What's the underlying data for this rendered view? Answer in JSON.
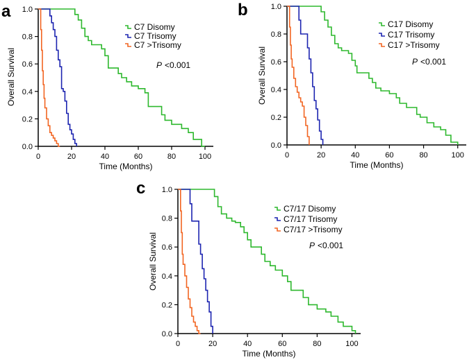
{
  "chart_data": [
    {
      "panel": "a",
      "type": "line",
      "xlabel": "Time (Months)",
      "ylabel": "Overall Survival",
      "xlim": [
        0,
        105
      ],
      "ylim": [
        0,
        1.0
      ],
      "xticks": [
        "0",
        "20",
        "40",
        "60",
        "80",
        "100"
      ],
      "yticks": [
        "0.0",
        "0.2",
        "0.4",
        "0.6",
        "0.8",
        "1.0"
      ],
      "pvalue": {
        "prefix": "P",
        "text": "<0.001"
      },
      "legend_position": "top-right",
      "series": [
        {
          "name": "C7 Disomy",
          "color": "#2db82d",
          "points": [
            [
              0,
              1.0
            ],
            [
              20,
              1.0
            ],
            [
              22,
              0.96
            ],
            [
              24,
              0.92
            ],
            [
              26,
              0.86
            ],
            [
              28,
              0.8
            ],
            [
              30,
              0.77
            ],
            [
              32,
              0.74
            ],
            [
              36,
              0.74
            ],
            [
              38,
              0.71
            ],
            [
              40,
              0.66
            ],
            [
              42,
              0.57
            ],
            [
              46,
              0.57
            ],
            [
              48,
              0.53
            ],
            [
              50,
              0.5
            ],
            [
              53,
              0.47
            ],
            [
              56,
              0.44
            ],
            [
              60,
              0.42
            ],
            [
              64,
              0.39
            ],
            [
              66,
              0.29
            ],
            [
              72,
              0.29
            ],
            [
              74,
              0.23
            ],
            [
              76,
              0.19
            ],
            [
              80,
              0.16
            ],
            [
              86,
              0.13
            ],
            [
              90,
              0.1
            ],
            [
              93,
              0.05
            ],
            [
              98,
              0.0
            ],
            [
              100,
              0.0
            ]
          ]
        },
        {
          "name": "C7 Trisomy",
          "color": "#1c24b0",
          "points": [
            [
              0,
              1.0
            ],
            [
              6,
              1.0
            ],
            [
              7,
              0.95
            ],
            [
              8,
              0.9
            ],
            [
              9,
              0.85
            ],
            [
              10,
              0.8
            ],
            [
              11,
              0.7
            ],
            [
              12,
              0.63
            ],
            [
              13,
              0.58
            ],
            [
              14,
              0.42
            ],
            [
              15,
              0.4
            ],
            [
              16,
              0.33
            ],
            [
              17,
              0.24
            ],
            [
              18,
              0.16
            ],
            [
              19,
              0.12
            ],
            [
              20,
              0.09
            ],
            [
              21,
              0.05
            ],
            [
              22,
              0.02
            ],
            [
              23,
              0.0
            ]
          ]
        },
        {
          "name": "C7 >Trisomy",
          "color": "#f26522",
          "points": [
            [
              0,
              1.0
            ],
            [
              1,
              1.0
            ],
            [
              1.5,
              0.85
            ],
            [
              2,
              0.7
            ],
            [
              2.5,
              0.55
            ],
            [
              3,
              0.45
            ],
            [
              3.5,
              0.35
            ],
            [
              4,
              0.28
            ],
            [
              5,
              0.2
            ],
            [
              6,
              0.15
            ],
            [
              7,
              0.1
            ],
            [
              8,
              0.08
            ],
            [
              9,
              0.06
            ],
            [
              10,
              0.04
            ],
            [
              11,
              0.02
            ],
            [
              12,
              0.0
            ],
            [
              13,
              0.0
            ]
          ]
        }
      ]
    },
    {
      "panel": "b",
      "type": "line",
      "xlabel": "Time (Months)",
      "ylabel": "Overall Survival",
      "xlim": [
        0,
        105
      ],
      "ylim": [
        0,
        1.0
      ],
      "xticks": [
        "0",
        "20",
        "40",
        "60",
        "80",
        "100"
      ],
      "yticks": [
        "0.0",
        "0.2",
        "0.4",
        "0.6",
        "0.8",
        "1.0"
      ],
      "pvalue": {
        "prefix": "P",
        "text": "<0.001"
      },
      "legend_position": "top-right",
      "series": [
        {
          "name": "C17 Disomy",
          "color": "#2db82d",
          "points": [
            [
              0,
              1.0
            ],
            [
              18,
              1.0
            ],
            [
              20,
              0.96
            ],
            [
              22,
              0.9
            ],
            [
              24,
              0.85
            ],
            [
              26,
              0.79
            ],
            [
              28,
              0.73
            ],
            [
              30,
              0.7
            ],
            [
              32,
              0.68
            ],
            [
              36,
              0.66
            ],
            [
              38,
              0.61
            ],
            [
              40,
              0.57
            ],
            [
              41,
              0.52
            ],
            [
              45,
              0.52
            ],
            [
              48,
              0.48
            ],
            [
              50,
              0.45
            ],
            [
              52,
              0.41
            ],
            [
              55,
              0.39
            ],
            [
              60,
              0.37
            ],
            [
              64,
              0.34
            ],
            [
              66,
              0.3
            ],
            [
              70,
              0.27
            ],
            [
              74,
              0.27
            ],
            [
              76,
              0.22
            ],
            [
              78,
              0.2
            ],
            [
              82,
              0.16
            ],
            [
              86,
              0.13
            ],
            [
              90,
              0.11
            ],
            [
              93,
              0.07
            ],
            [
              96,
              0.02
            ],
            [
              100,
              0.0
            ]
          ]
        },
        {
          "name": "C17 Trisomy",
          "color": "#1c24b0",
          "points": [
            [
              0,
              1.0
            ],
            [
              6,
              1.0
            ],
            [
              7,
              0.9
            ],
            [
              8,
              0.8
            ],
            [
              11,
              0.8
            ],
            [
              12,
              0.7
            ],
            [
              13,
              0.62
            ],
            [
              14,
              0.52
            ],
            [
              15,
              0.42
            ],
            [
              16,
              0.32
            ],
            [
              17,
              0.26
            ],
            [
              18,
              0.18
            ],
            [
              19,
              0.1
            ],
            [
              20,
              0.04
            ],
            [
              21,
              0.0
            ]
          ]
        },
        {
          "name": "C17 >Trisomy",
          "color": "#f26522",
          "points": [
            [
              0,
              1.0
            ],
            [
              1,
              1.0
            ],
            [
              1.5,
              0.85
            ],
            [
              2,
              0.72
            ],
            [
              2.5,
              0.62
            ],
            [
              3,
              0.56
            ],
            [
              4,
              0.48
            ],
            [
              5,
              0.42
            ],
            [
              6,
              0.38
            ],
            [
              7,
              0.34
            ],
            [
              8,
              0.31
            ],
            [
              9,
              0.28
            ],
            [
              10,
              0.2
            ],
            [
              11,
              0.14
            ],
            [
              12,
              0.06
            ],
            [
              13,
              0.0
            ]
          ]
        }
      ]
    },
    {
      "panel": "c",
      "type": "line",
      "xlabel": "Time (Months)",
      "ylabel": "Overall Survival",
      "xlim": [
        0,
        105
      ],
      "ylim": [
        0,
        1.0
      ],
      "xticks": [
        "0",
        "20",
        "40",
        "60",
        "80",
        "100"
      ],
      "yticks": [
        "0.0",
        "0.2",
        "0.4",
        "0.6",
        "0.8",
        "1.0"
      ],
      "pvalue": {
        "prefix": "P",
        "text": "<0.001"
      },
      "legend_position": "top-right",
      "series": [
        {
          "name": "C7/17 Disomy",
          "color": "#2db82d",
          "points": [
            [
              0,
              1.0
            ],
            [
              19,
              1.0
            ],
            [
              21,
              0.95
            ],
            [
              23,
              0.88
            ],
            [
              25,
              0.83
            ],
            [
              28,
              0.8
            ],
            [
              31,
              0.78
            ],
            [
              33,
              0.77
            ],
            [
              36,
              0.74
            ],
            [
              38,
              0.7
            ],
            [
              40,
              0.65
            ],
            [
              42,
              0.6
            ],
            [
              46,
              0.6
            ],
            [
              48,
              0.55
            ],
            [
              50,
              0.5
            ],
            [
              53,
              0.47
            ],
            [
              56,
              0.44
            ],
            [
              60,
              0.4
            ],
            [
              63,
              0.36
            ],
            [
              65,
              0.3
            ],
            [
              70,
              0.3
            ],
            [
              72,
              0.25
            ],
            [
              75,
              0.2
            ],
            [
              80,
              0.17
            ],
            [
              85,
              0.15
            ],
            [
              88,
              0.12
            ],
            [
              92,
              0.08
            ],
            [
              95,
              0.05
            ],
            [
              100,
              0.02
            ],
            [
              102,
              0.0
            ]
          ]
        },
        {
          "name": "C7/17 Trisomy",
          "color": "#1c24b0",
          "points": [
            [
              0,
              1.0
            ],
            [
              6,
              1.0
            ],
            [
              7,
              0.9
            ],
            [
              8,
              0.78
            ],
            [
              11,
              0.78
            ],
            [
              12,
              0.62
            ],
            [
              13,
              0.55
            ],
            [
              14,
              0.45
            ],
            [
              15,
              0.38
            ],
            [
              16,
              0.3
            ],
            [
              17,
              0.22
            ],
            [
              18,
              0.15
            ],
            [
              19,
              0.05
            ],
            [
              20,
              0.0
            ]
          ]
        },
        {
          "name": "C7/17 >Trisomy",
          "color": "#f26522",
          "points": [
            [
              0,
              1.0
            ],
            [
              1,
              1.0
            ],
            [
              1.5,
              0.85
            ],
            [
              2,
              0.7
            ],
            [
              2.5,
              0.55
            ],
            [
              3,
              0.48
            ],
            [
              4,
              0.4
            ],
            [
              5,
              0.32
            ],
            [
              6,
              0.24
            ],
            [
              7,
              0.18
            ],
            [
              8,
              0.12
            ],
            [
              9,
              0.08
            ],
            [
              10,
              0.05
            ],
            [
              11,
              0.02
            ],
            [
              12,
              0.0
            ],
            [
              13,
              0.0
            ]
          ]
        }
      ]
    }
  ]
}
